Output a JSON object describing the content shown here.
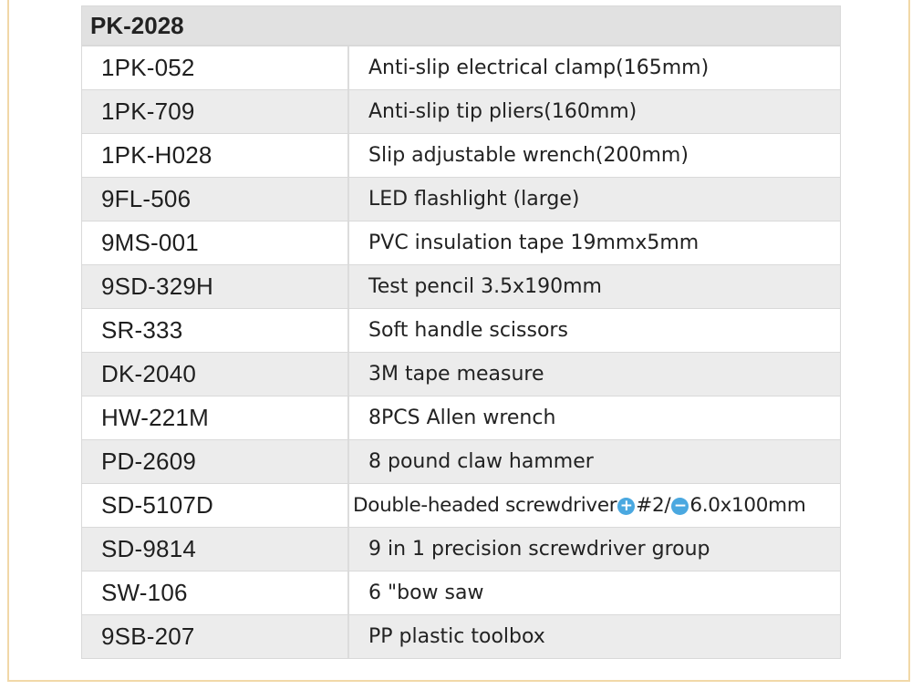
{
  "table": {
    "title": "PK-2028",
    "rows": [
      {
        "code": "1PK-052",
        "desc": "Anti-slip electrical clamp(165mm)"
      },
      {
        "code": "1PK-709",
        "desc": "Anti-slip tip pliers(160mm)"
      },
      {
        "code": "1PK-H028",
        "desc": "Slip adjustable wrench(200mm)"
      },
      {
        "code": "9FL-506",
        "desc": "LED flashlight (large)"
      },
      {
        "code": "9MS-001",
        "desc": "PVC insulation tape 19mmx5mm"
      },
      {
        "code": "9SD-329H",
        "desc": "Test pencil 3.5x190mm"
      },
      {
        "code": "SR-333",
        "desc": "Soft handle scissors"
      },
      {
        "code": "DK-2040",
        "desc": "3M tape measure"
      },
      {
        "code": "HW-221M",
        "desc": "8PCS Allen wrench"
      },
      {
        "code": "PD-2609",
        "desc": "8 pound claw hammer"
      },
      {
        "code": "SD-5107D",
        "desc_parts": {
          "prefix": "Double-headed screwdriver",
          "plus_symbol": "+",
          "middle": "#2/",
          "minus_symbol": "−",
          "suffix": "6.0x100mm"
        }
      },
      {
        "code": "SD-9814",
        "desc": "9 in 1 precision screwdriver group"
      },
      {
        "code": "SW-106",
        "desc": "6 \"bow saw"
      },
      {
        "code": "9SB-207",
        "desc": "PP plastic toolbox"
      }
    ]
  },
  "colors": {
    "header_bg": "#e1e1e1",
    "alt_row_bg": "#ececec",
    "frame_border": "#f1d8a8",
    "icon_blue": "#4aa8e0"
  },
  "icons": {
    "plus": "phillips-plus-icon",
    "minus": "flathead-minus-icon"
  }
}
